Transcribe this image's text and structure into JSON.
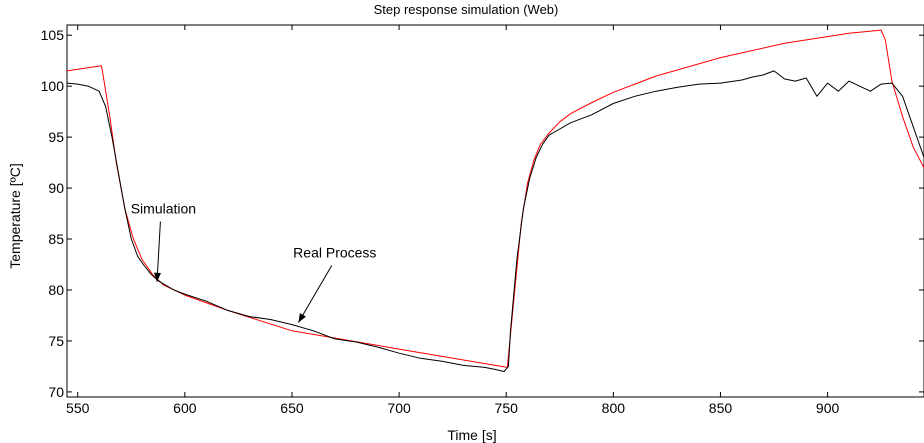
{
  "chart_data": {
    "type": "line",
    "title": "Step response simulation (Web)",
    "xlabel": "Time [s]",
    "ylabel": "Temperature [ºC]",
    "xlim": [
      545,
      945
    ],
    "ylim": [
      69.5,
      106
    ],
    "x_ticks": [
      550,
      600,
      650,
      700,
      750,
      800,
      850,
      900
    ],
    "y_ticks": [
      70,
      75,
      80,
      85,
      90,
      95,
      100,
      105
    ],
    "grid": false,
    "colors": {
      "simulation": "#ff0000",
      "real_process": "#000000"
    },
    "series": [
      {
        "key": "simulation",
        "x": [
          545,
          561,
          561.5,
          565,
          568,
          572,
          576,
          580,
          585,
          590,
          600,
          620,
          650,
          700,
          750.5,
          751,
          754,
          757,
          760,
          763,
          766,
          770,
          775,
          780,
          790,
          800,
          820,
          850,
          880,
          910,
          925,
          927,
          930,
          935,
          940,
          945
        ],
        "y": [
          101.5,
          102.0,
          101.5,
          97.0,
          92.5,
          88.0,
          85.0,
          83.0,
          81.5,
          80.5,
          79.5,
          78.0,
          76.0,
          74.2,
          72.4,
          73.5,
          80.0,
          86.5,
          90.5,
          92.8,
          94.3,
          95.4,
          96.5,
          97.3,
          98.4,
          99.4,
          101.0,
          102.8,
          104.2,
          105.2,
          105.5,
          104.5,
          100.5,
          97.0,
          94.0,
          92.0
        ]
      },
      {
        "key": "real_process",
        "x": [
          545,
          550,
          555,
          560,
          563,
          566,
          569,
          572,
          575,
          578,
          581,
          584,
          587,
          590,
          595,
          600,
          610,
          620,
          630,
          640,
          650,
          660,
          670,
          680,
          690,
          700,
          710,
          720,
          730,
          740,
          745,
          749,
          751,
          752,
          755,
          758,
          761,
          764,
          767,
          770,
          775,
          780,
          790,
          800,
          810,
          820,
          830,
          840,
          850,
          860,
          865,
          870,
          875,
          880,
          885,
          890,
          895,
          900,
          905,
          910,
          915,
          920,
          925,
          930,
          935,
          940,
          945
        ],
        "y": [
          100.3,
          100.2,
          100.0,
          99.5,
          98.0,
          95.0,
          91.5,
          88.0,
          85.0,
          83.3,
          82.4,
          81.6,
          81.0,
          80.6,
          80.0,
          79.6,
          78.9,
          78.0,
          77.4,
          77.1,
          76.6,
          76.0,
          75.2,
          74.9,
          74.4,
          73.8,
          73.3,
          73.0,
          72.6,
          72.4,
          72.2,
          72.0,
          72.5,
          76.0,
          83.0,
          88.0,
          91.0,
          93.0,
          94.3,
          95.2,
          95.8,
          96.4,
          97.2,
          98.3,
          99.0,
          99.5,
          99.9,
          100.2,
          100.3,
          100.6,
          100.9,
          101.1,
          101.5,
          100.7,
          100.5,
          100.8,
          99.0,
          100.3,
          99.5,
          100.5,
          100.0,
          99.5,
          100.2,
          100.3,
          99.0,
          96.0,
          93.0
        ]
      }
    ],
    "annotations": [
      {
        "text": "Simulation",
        "arrow_to": [
          587,
          80.8
        ],
        "text_at": [
          590,
          87.5
        ]
      },
      {
        "text": "Real Process",
        "arrow_to": [
          653,
          76.8
        ],
        "text_at": [
          670,
          83.2
        ]
      }
    ]
  }
}
